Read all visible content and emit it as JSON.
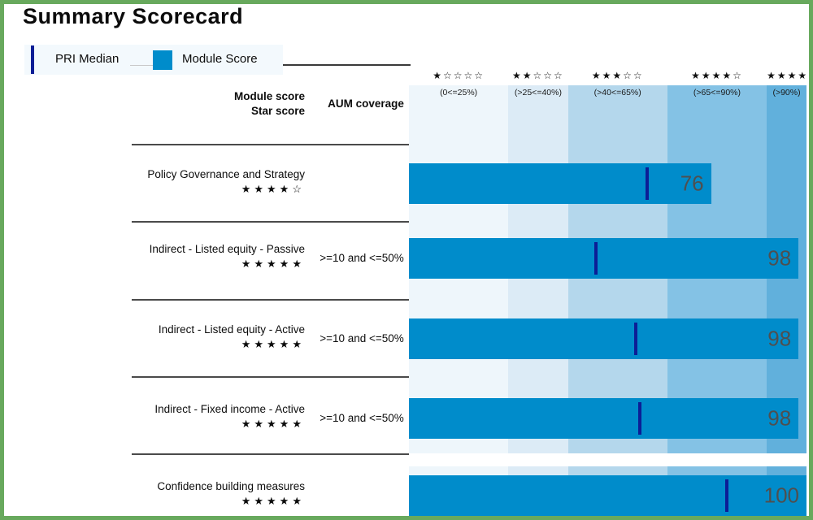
{
  "title": "Summary Scorecard",
  "legend": {
    "pri_median_label": "PRI Median",
    "module_score_label": "Module Score"
  },
  "columns": {
    "module_score_header": "Module score",
    "star_score_header": "Star score",
    "aum_header": "AUM coverage"
  },
  "colors": {
    "bar": "#008ccb",
    "median_line": "#0c1e96",
    "frame_green": "#68a95d",
    "legend_bg": "#f3f9fd",
    "value_text": "#4f4f4f",
    "band_colors": [
      "#eef6fb",
      "#dcebf6",
      "#b4d7ec",
      "#84c2e5",
      "#61b0dc"
    ]
  },
  "chart_data": {
    "type": "bar",
    "title": "Summary Scorecard",
    "orientation": "horizontal",
    "xlim": [
      0,
      100
    ],
    "legend_entries": [
      "PRI Median",
      "Module Score"
    ],
    "bands": [
      {
        "stars": "★☆☆☆☆",
        "range_label": "(0<=25%)",
        "from": 0,
        "to": 25
      },
      {
        "stars": "★★☆☆☆",
        "range_label": "(>25<=40%)",
        "from": 25,
        "to": 40
      },
      {
        "stars": "★★★☆☆",
        "range_label": "(>40<=65%)",
        "from": 40,
        "to": 65
      },
      {
        "stars": "★★★★☆",
        "range_label": "(>65<=90%)",
        "from": 65,
        "to": 90
      },
      {
        "stars": "★★★★★",
        "range_label": "(>90%)",
        "from": 90,
        "to": 100
      }
    ],
    "rows": [
      {
        "label": "Policy Governance and Strategy",
        "stars": "★★★★☆",
        "aum": "",
        "score": 76,
        "pri_median": 60
      },
      {
        "label": "Indirect - Listed equity - Passive",
        "stars": "★★★★★",
        "aum": ">=10 and <=50%",
        "score": 98,
        "pri_median": 47
      },
      {
        "label": "Indirect - Listed equity - Active",
        "stars": "★★★★★",
        "aum": ">=10 and <=50%",
        "score": 98,
        "pri_median": 57
      },
      {
        "label": "Indirect - Fixed income - Active",
        "stars": "★★★★★",
        "aum": ">=10 and <=50%",
        "score": 98,
        "pri_median": 58
      },
      {
        "label": "Confidence building measures",
        "stars": "★★★★★",
        "aum": "",
        "score": 100,
        "pri_median": 80
      }
    ]
  }
}
